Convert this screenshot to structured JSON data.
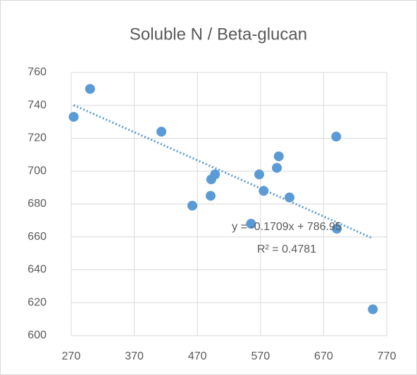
{
  "chart_data": {
    "type": "scatter",
    "title": "Soluble N / Beta-glucan",
    "x": [
      274,
      300,
      413,
      462,
      491,
      492,
      498,
      555,
      568,
      575,
      596,
      599,
      616,
      690,
      691,
      748
    ],
    "values": [
      733,
      750,
      724,
      679,
      685,
      695,
      698,
      668,
      698,
      688,
      702,
      709,
      684,
      721,
      665,
      616
    ],
    "color": "#5b9bd5",
    "xlim": [
      270,
      770
    ],
    "xticks": [
      270,
      370,
      470,
      570,
      670,
      770
    ],
    "ylim": [
      600,
      760
    ],
    "yticks": [
      600,
      620,
      640,
      660,
      680,
      700,
      720,
      740,
      760
    ],
    "grid": true,
    "trendline": {
      "equation": "y = -0.1709x + 786.95",
      "r2_label": "R² = 0.4781",
      "slope": -0.1709,
      "intercept": 786.95
    }
  }
}
